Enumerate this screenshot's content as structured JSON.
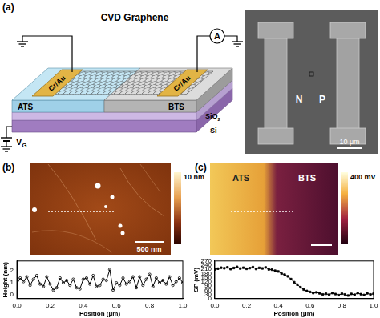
{
  "figure": {
    "panel_a": {
      "label": "(a)",
      "schematic": {
        "title": "CVD Graphene",
        "electrode_left": "Cr/Au",
        "electrode_right": "Cr/Au",
        "ats": "ATS",
        "bts": "BTS",
        "sio2": {
          "main": "SiO",
          "sub": "2"
        },
        "si": "Si",
        "gate": {
          "main": "V",
          "sub": "G"
        },
        "meter": "A"
      },
      "sem": {
        "left_region": "N",
        "right_region": "P",
        "scale_bar": "10 μm"
      }
    },
    "panel_b": {
      "label": "(b)",
      "scale_bar": "500 nm",
      "colorbar_label": "10 nm"
    },
    "panel_c": {
      "label": "(c)",
      "left_region": "ATS",
      "right_region": "BTS",
      "colorbar_label": "400 mV"
    }
  },
  "chart_data": [
    {
      "type": "line",
      "x_label": "Position (μm)",
      "y_label": "Height (nm)",
      "color": "#000000",
      "marker": "circle",
      "grid": false,
      "xlim": [
        0,
        1.0
      ],
      "xticks": [
        {
          "value": 0,
          "label": "0.0"
        },
        {
          "value": 0.2,
          "label": "0.2"
        },
        {
          "value": 0.4,
          "label": "0.4"
        },
        {
          "value": 0.6,
          "label": "0.6"
        },
        {
          "value": 0.8,
          "label": "0.8"
        },
        {
          "value": 1.0,
          "label": "1.0"
        }
      ],
      "ylim": [
        -0.3,
        2.8
      ],
      "yticks": [
        0,
        1,
        2
      ],
      "x": [
        0,
        0.02,
        0.04,
        0.06,
        0.08,
        0.1,
        0.12,
        0.14,
        0.16,
        0.18,
        0.2,
        0.22,
        0.24,
        0.26,
        0.28,
        0.3,
        0.32,
        0.34,
        0.36,
        0.38,
        0.4,
        0.42,
        0.44,
        0.46,
        0.48,
        0.5,
        0.52,
        0.54,
        0.56,
        0.58,
        0.6,
        0.62,
        0.64,
        0.66,
        0.68,
        0.7,
        0.72,
        0.74,
        0.76,
        0.78,
        0.8,
        0.82,
        0.84,
        0.86,
        0.88,
        0.9,
        0.92,
        0.94,
        0.96,
        0.98,
        1.0
      ],
      "values": [
        0.9,
        1.4,
        1.1,
        1.5,
        0.8,
        1.3,
        1.6,
        0.9,
        0.7,
        1.5,
        0.9,
        0.4,
        0.6,
        1.4,
        1.0,
        1.2,
        0.8,
        1.3,
        0.6,
        0.5,
        1.3,
        1.4,
        0.9,
        1.6,
        0.7,
        0.8,
        1.3,
        1.2,
        2.1,
        0.4,
        1.0,
        0.8,
        1.4,
        0.9,
        1.1,
        1.5,
        0.6,
        1.5,
        0.8,
        1.3,
        1.7,
        0.7,
        1.4,
        1.0,
        1.2,
        0.9,
        1.5,
        0.8,
        1.1,
        1.4,
        1.0
      ]
    },
    {
      "type": "line",
      "x_label": "Position (μm)",
      "y_label": "SP (mV)",
      "color": "#000000",
      "marker": "square",
      "grid": false,
      "xlim": [
        0,
        1.0
      ],
      "xticks": [
        {
          "value": 0,
          "label": "0.0"
        },
        {
          "value": 0.2,
          "label": "0.2"
        },
        {
          "value": 0.4,
          "label": "0.4"
        },
        {
          "value": 0.6,
          "label": "0.6"
        },
        {
          "value": 0.8,
          "label": "0.8"
        },
        {
          "value": 1.0,
          "label": "1.0"
        }
      ],
      "ylim": [
        0,
        270
      ],
      "yticks": [
        0,
        30,
        60,
        90,
        120,
        150,
        180,
        210,
        240,
        270
      ],
      "x": [
        0,
        0.02,
        0.04,
        0.06,
        0.08,
        0.1,
        0.12,
        0.14,
        0.16,
        0.18,
        0.2,
        0.22,
        0.24,
        0.26,
        0.28,
        0.3,
        0.32,
        0.34,
        0.36,
        0.38,
        0.4,
        0.42,
        0.44,
        0.46,
        0.48,
        0.5,
        0.52,
        0.54,
        0.56,
        0.58,
        0.6,
        0.62,
        0.64,
        0.66,
        0.68,
        0.7,
        0.72,
        0.74,
        0.76,
        0.78,
        0.8,
        0.82,
        0.84,
        0.86,
        0.88,
        0.9,
        0.92,
        0.94,
        0.96,
        0.98,
        1.0
      ],
      "values": [
        210,
        215,
        222,
        218,
        225,
        212,
        220,
        228,
        216,
        222,
        214,
        219,
        226,
        213,
        221,
        217,
        224,
        210,
        208,
        200,
        195,
        180,
        172,
        160,
        140,
        118,
        100,
        82,
        65,
        55,
        48,
        40,
        45,
        38,
        30,
        35,
        28,
        40,
        33,
        25,
        36,
        30,
        22,
        34,
        28,
        40,
        32,
        26,
        38,
        30,
        35
      ]
    }
  ]
}
